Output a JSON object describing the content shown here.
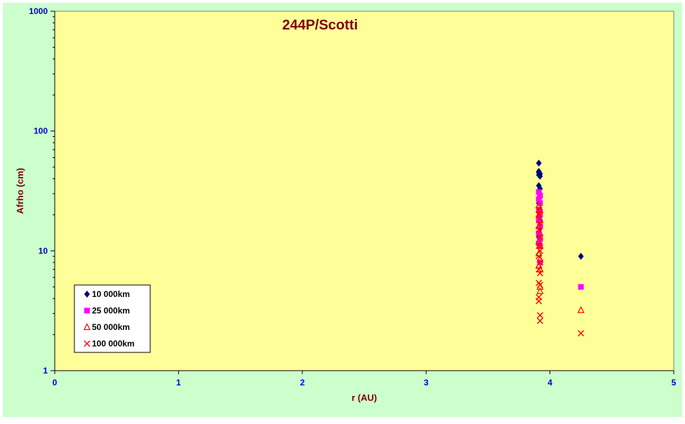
{
  "chart_data": {
    "type": "scatter",
    "title": "244P/Scotti",
    "xlabel": "r (AU)",
    "ylabel": "Afrho (cm)",
    "xlim": [
      0,
      5
    ],
    "ylim": [
      1,
      1000
    ],
    "yscale": "log",
    "x_ticks": [
      "0",
      "1",
      "2",
      "3",
      "4",
      "5"
    ],
    "y_ticks": [
      "1",
      "10",
      "100",
      "1000"
    ],
    "grid": false,
    "legend_position": "bottom-left",
    "colors": {
      "outer_background": "#ccffcc",
      "plot_background": "#ffff99",
      "title": "#800000",
      "axis_label": "#800000",
      "tick_label": "#0000cc"
    },
    "series": [
      {
        "name": "10 000km",
        "marker": "diamond",
        "color": "#000080",
        "points": [
          [
            3.91,
            54
          ],
          [
            3.91,
            46
          ],
          [
            3.91,
            45
          ],
          [
            3.92,
            44
          ],
          [
            3.91,
            43
          ],
          [
            3.92,
            42
          ],
          [
            3.91,
            35
          ],
          [
            3.92,
            33
          ],
          [
            3.91,
            30
          ],
          [
            3.92,
            28
          ],
          [
            3.91,
            25
          ],
          [
            3.92,
            22
          ],
          [
            3.92,
            18
          ],
          [
            3.92,
            15.5
          ],
          [
            3.91,
            13
          ],
          [
            3.92,
            11
          ],
          [
            4.25,
            9
          ]
        ]
      },
      {
        "name": "25 000km",
        "marker": "square",
        "color": "#ff00ff",
        "points": [
          [
            3.91,
            31
          ],
          [
            3.92,
            29
          ],
          [
            3.91,
            27
          ],
          [
            3.92,
            25
          ],
          [
            3.91,
            22
          ],
          [
            3.92,
            20
          ],
          [
            3.91,
            18
          ],
          [
            3.92,
            16
          ],
          [
            3.91,
            14
          ],
          [
            3.92,
            12.5
          ],
          [
            3.91,
            11.5
          ],
          [
            3.92,
            11
          ],
          [
            3.92,
            8
          ],
          [
            4.25,
            5
          ]
        ]
      },
      {
        "name": "50 000km",
        "marker": "triangle",
        "color": "#ff0000",
        "points": [
          [
            3.91,
            24
          ],
          [
            3.92,
            22
          ],
          [
            3.91,
            20
          ],
          [
            3.92,
            18
          ],
          [
            3.91,
            16
          ],
          [
            3.92,
            14
          ],
          [
            3.91,
            12
          ],
          [
            3.92,
            11
          ],
          [
            3.91,
            9.5
          ],
          [
            3.92,
            8.5
          ],
          [
            3.91,
            7.5
          ],
          [
            3.92,
            7
          ],
          [
            3.92,
            5
          ],
          [
            3.92,
            4.6
          ],
          [
            4.25,
            3.2
          ]
        ]
      },
      {
        "name": "100 000km",
        "marker": "x",
        "color": "#ff0000",
        "points": [
          [
            3.91,
            22
          ],
          [
            3.91,
            20
          ],
          [
            3.92,
            17
          ],
          [
            3.91,
            15
          ],
          [
            3.92,
            13
          ],
          [
            3.91,
            11
          ],
          [
            3.92,
            10
          ],
          [
            3.91,
            9
          ],
          [
            3.92,
            8
          ],
          [
            3.91,
            7
          ],
          [
            3.92,
            6.5
          ],
          [
            3.91,
            5.4
          ],
          [
            3.92,
            5.2
          ],
          [
            3.91,
            4.1
          ],
          [
            3.91,
            3.8
          ],
          [
            3.92,
            2.9
          ],
          [
            3.92,
            2.6
          ],
          [
            4.25,
            2.05
          ]
        ]
      }
    ]
  }
}
